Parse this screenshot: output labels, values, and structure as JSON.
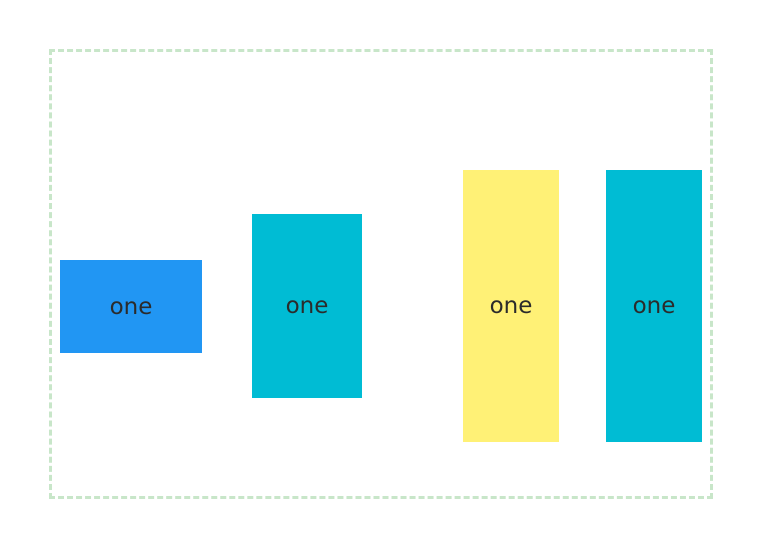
{
  "colors": {
    "container_border": "#c8e6c9",
    "box_blue": "#2196f3",
    "box_cyan": "#00bcd4",
    "box_yellow": "#fff176",
    "text": "#2b2b2b"
  },
  "boxes": [
    {
      "label": "one",
      "color": "#2196f3"
    },
    {
      "label": "one",
      "color": "#00bcd4"
    },
    {
      "label": "one",
      "color": "#fff176"
    },
    {
      "label": "one",
      "color": "#00bcd4"
    }
  ]
}
